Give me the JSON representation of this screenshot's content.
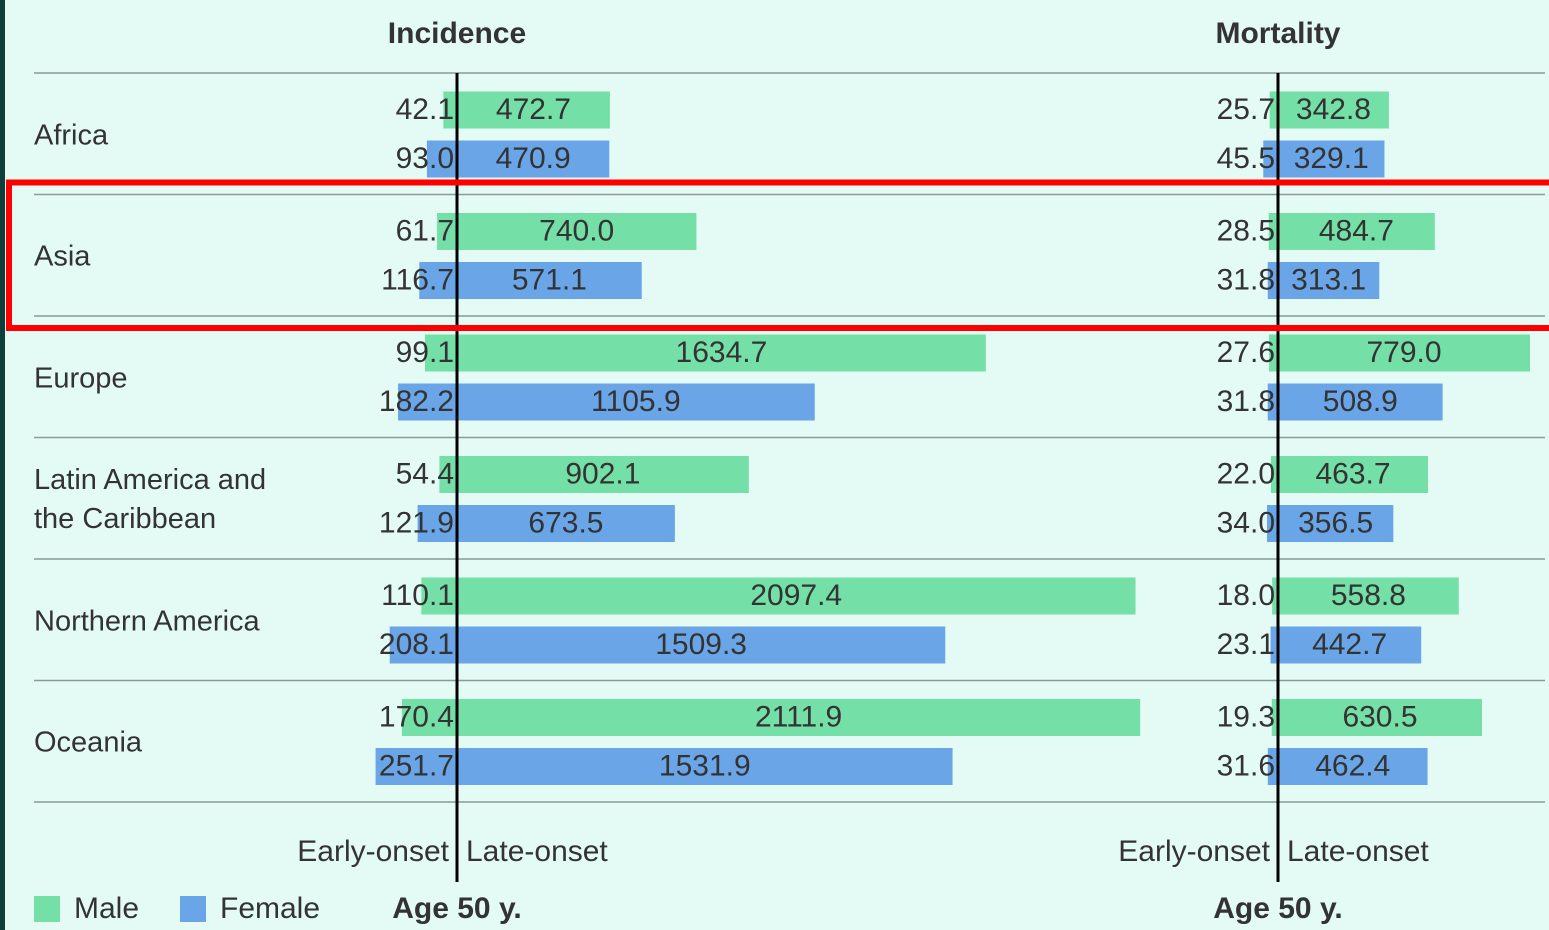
{
  "chart_data": {
    "type": "butterfly",
    "categories": [
      "Africa",
      "Asia",
      "Europe",
      "Latin America and the Caribbean",
      "Northern America",
      "Oceania"
    ],
    "series": [
      {
        "name": "Male",
        "color": "#74dfa6"
      },
      {
        "name": "Female",
        "color": "#6aa5e8"
      }
    ],
    "highlight": 1,
    "panels": [
      {
        "title": "Incidence",
        "early_label": "Early-onset",
        "late_label": "Late-onset",
        "axis_label": "Age 50 y.",
        "series": [
          {
            "early": {
              "values": [
                42.1,
                61.7,
                99.1,
                54.4,
                110.1,
                170.4
              ],
              "value_labels": [
                "42.1",
                "61.7",
                "99.1",
                "54.4",
                "110.1",
                "170.4"
              ]
            },
            "late": {
              "values": [
                472.7,
                740.0,
                1634.7,
                902.1,
                2097.4,
                2111.9
              ],
              "value_labels": [
                "472.7",
                "740.0",
                "1634.7",
                "902.1",
                "2097.4",
                "2111.9"
              ]
            }
          },
          {
            "early": {
              "values": [
                93.0,
                116.7,
                182.2,
                121.9,
                208.1,
                251.7
              ],
              "value_labels": [
                "93.0",
                "116.7",
                "182.2",
                "121.9",
                "208.1",
                "251.7"
              ]
            },
            "late": {
              "values": [
                470.9,
                571.1,
                1105.9,
                673.5,
                1509.3,
                1531.9
              ],
              "value_labels": [
                "470.9",
                "571.1",
                "1105.9",
                "673.5",
                "1509.3",
                "1531.9"
              ]
            }
          }
        ]
      },
      {
        "title": "Mortality",
        "early_label": "Early-onset",
        "late_label": "Late-onset",
        "axis_label": "Age 50 y.",
        "series": [
          {
            "early": {
              "values": [
                25.7,
                28.5,
                27.6,
                22.0,
                18.0,
                19.3
              ],
              "value_labels": [
                "25.7",
                "28.5",
                "27.6",
                "22.0",
                "18.0",
                "19.3"
              ]
            },
            "late": {
              "values": [
                342.8,
                484.7,
                779.0,
                463.7,
                558.8,
                630.5
              ],
              "value_labels": [
                "342.8",
                "484.7",
                "779.0",
                "463.7",
                "558.8",
                "630.5"
              ]
            }
          },
          {
            "early": {
              "values": [
                45.5,
                31.8,
                31.8,
                34.0,
                23.1,
                31.6
              ],
              "value_labels": [
                "45.5",
                "31.8",
                "31.8",
                "34.0",
                "23.1",
                "31.6"
              ]
            },
            "late": {
              "values": [
                329.1,
                313.1,
                508.9,
                356.5,
                442.7,
                462.4
              ],
              "value_labels": [
                "329.1",
                "313.1",
                "508.9",
                "356.5",
                "442.7",
                "462.4"
              ]
            }
          }
        ]
      }
    ]
  }
}
